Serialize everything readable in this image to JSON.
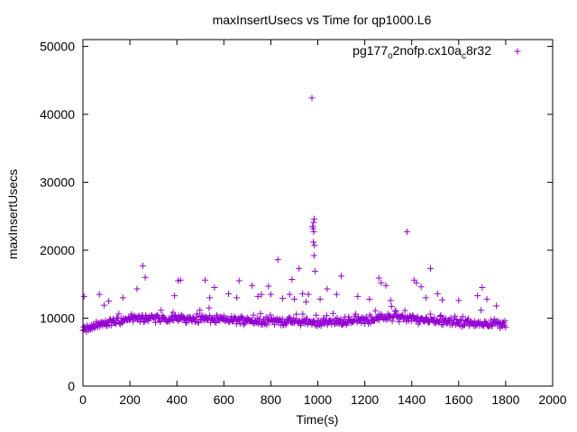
{
  "chart_data": {
    "type": "scatter",
    "title": "maxInsertUsecs vs Time for qp1000.L6",
    "xlabel": "Time(s)",
    "ylabel": "maxInsertUsecs",
    "xlim": [
      0,
      2000
    ],
    "ylim": [
      0,
      51000
    ],
    "xticks": [
      0,
      200,
      400,
      600,
      800,
      1000,
      1200,
      1400,
      1600,
      1800,
      2000
    ],
    "yticks": [
      0,
      10000,
      20000,
      30000,
      40000,
      50000
    ],
    "grid": false,
    "legend_position": "top-right",
    "marker": "plus",
    "series": [
      {
        "name_parts": [
          "pg177",
          "o",
          "2nofp.cx10a",
          "c",
          "8r32"
        ],
        "color": "#9400d3",
        "baseline": {
          "x_range": [
            0,
            1800
          ],
          "step": 3,
          "profile": [
            [
              0,
              8200
            ],
            [
              50,
              8800
            ],
            [
              100,
              9300
            ],
            [
              200,
              9900
            ],
            [
              300,
              10000
            ],
            [
              600,
              9800
            ],
            [
              900,
              9500
            ],
            [
              1000,
              9300
            ],
            [
              1200,
              9700
            ],
            [
              1300,
              10200
            ],
            [
              1400,
              9900
            ],
            [
              1600,
              9400
            ],
            [
              1800,
              9100
            ]
          ],
          "jitter": 700
        },
        "outliers": [
          [
            5,
            13200
          ],
          [
            70,
            13500
          ],
          [
            90,
            11900
          ],
          [
            110,
            12500
          ],
          [
            170,
            13000
          ],
          [
            230,
            14300
          ],
          [
            255,
            17700
          ],
          [
            265,
            16000
          ],
          [
            390,
            13300
          ],
          [
            405,
            15500
          ],
          [
            415,
            15600
          ],
          [
            520,
            15600
          ],
          [
            540,
            13000
          ],
          [
            560,
            14500
          ],
          [
            620,
            13600
          ],
          [
            655,
            13000
          ],
          [
            665,
            15500
          ],
          [
            720,
            14800
          ],
          [
            745,
            13200
          ],
          [
            760,
            13500
          ],
          [
            790,
            14700
          ],
          [
            800,
            13500
          ],
          [
            830,
            18600
          ],
          [
            850,
            12900
          ],
          [
            880,
            13500
          ],
          [
            890,
            15700
          ],
          [
            900,
            12800
          ],
          [
            920,
            17300
          ],
          [
            935,
            13600
          ],
          [
            950,
            12400
          ],
          [
            960,
            13500
          ],
          [
            975,
            42400
          ],
          [
            978,
            23500
          ],
          [
            980,
            23200
          ],
          [
            982,
            24100
          ],
          [
            985,
            24600
          ],
          [
            983,
            22700
          ],
          [
            981,
            21200
          ],
          [
            986,
            20700
          ],
          [
            984,
            19200
          ],
          [
            988,
            16900
          ],
          [
            1010,
            12800
          ],
          [
            1040,
            14300
          ],
          [
            1080,
            13500
          ],
          [
            1100,
            16200
          ],
          [
            1170,
            13200
          ],
          [
            1220,
            12800
          ],
          [
            1260,
            15900
          ],
          [
            1270,
            15200
          ],
          [
            1290,
            14800
          ],
          [
            1310,
            12600
          ],
          [
            1380,
            22700
          ],
          [
            1410,
            15600
          ],
          [
            1420,
            15200
          ],
          [
            1440,
            14600
          ],
          [
            1460,
            13000
          ],
          [
            1480,
            17300
          ],
          [
            1510,
            13600
          ],
          [
            1530,
            12700
          ],
          [
            1600,
            12600
          ],
          [
            1680,
            13300
          ],
          [
            1700,
            14500
          ],
          [
            1720,
            12800
          ],
          [
            1760,
            11800
          ]
        ]
      }
    ]
  }
}
